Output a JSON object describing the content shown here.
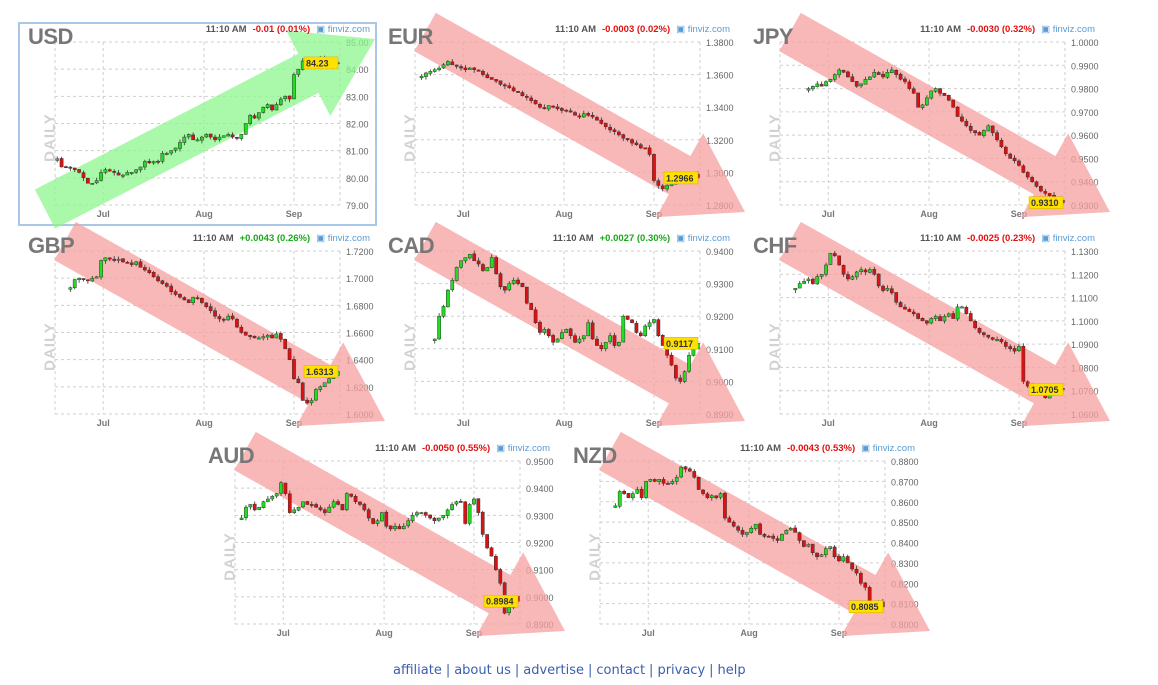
{
  "colors": {
    "up": "#22dd22",
    "down": "#dd1111",
    "up_arrow": "#8ef58e",
    "down_arrow": "#f7a0a0",
    "last_price_bg": "#ffe000",
    "link": "#3b5fb0",
    "brand": "#5a9ad6",
    "selected_border": "#a9c8e8"
  },
  "month_ticks": [
    {
      "label": "Jul",
      "slot": 11
    },
    {
      "label": "Aug",
      "slot": 34
    },
    {
      "label": "Sep",
      "slot": 54.5
    }
  ],
  "common": {
    "time": "11:10 AM",
    "brand": "finviz.com",
    "period": "DAILY",
    "brand_icon": "camera-icon"
  },
  "charts": [
    {
      "symbol": "USD",
      "change": "-0.01 (0.01%)",
      "direction": "down",
      "trend": "up",
      "selected": true,
      "last": "84.23",
      "y_ticks": [
        "85.00",
        "84.00",
        "83.00",
        "82.00",
        "81.00",
        "80.00",
        "79.00"
      ],
      "closes": [
        80.7,
        80.4,
        80.4,
        80.35,
        80.3,
        80.2,
        80.0,
        79.8,
        79.8,
        79.9,
        80.2,
        80.3,
        80.25,
        80.2,
        80.1,
        80.1,
        80.2,
        80.2,
        80.3,
        80.4,
        80.6,
        80.55,
        80.6,
        80.6,
        80.9,
        80.9,
        81.0,
        81.1,
        81.3,
        81.5,
        81.6,
        81.4,
        81.4,
        81.5,
        81.6,
        81.5,
        81.4,
        81.5,
        81.55,
        81.6,
        81.5,
        81.45,
        81.6,
        82.0,
        82.3,
        82.2,
        82.4,
        82.6,
        82.7,
        82.5,
        82.7,
        82.9,
        83.0,
        82.9,
        83.8,
        84.0,
        84.3,
        84.2,
        84.1,
        84.3,
        84.4,
        84.3,
        84.2,
        84.25,
        84.23
      ]
    },
    {
      "symbol": "EUR",
      "change": "-0.0003 (0.02%)",
      "direction": "down",
      "trend": "down",
      "last": "1.2966",
      "y_ticks": [
        "1.3800",
        "1.3600",
        "1.3400",
        "1.3200",
        "1.3000",
        "1.2800"
      ],
      "closes": [
        1.359,
        1.361,
        1.362,
        1.363,
        1.364,
        1.366,
        1.368,
        1.366,
        1.365,
        1.364,
        1.363,
        1.364,
        1.363,
        1.362,
        1.36,
        1.358,
        1.357,
        1.356,
        1.354,
        1.353,
        1.352,
        1.35,
        1.349,
        1.347,
        1.346,
        1.344,
        1.342,
        1.34,
        1.339,
        1.341,
        1.34,
        1.339,
        1.338,
        1.338,
        1.337,
        1.335,
        1.334,
        1.336,
        1.335,
        1.334,
        1.332,
        1.33,
        1.328,
        1.326,
        1.325,
        1.323,
        1.321,
        1.32,
        1.318,
        1.317,
        1.315,
        1.315,
        1.311,
        1.295,
        1.292,
        1.29,
        1.292,
        1.293,
        1.295,
        1.296,
        1.297,
        1.298,
        1.299,
        1.2966
      ]
    },
    {
      "symbol": "JPY",
      "change": "-0.0030 (0.32%)",
      "direction": "down",
      "trend": "down",
      "last": "0.9310",
      "y_ticks": [
        "1.0000",
        "0.9900",
        "0.9800",
        "0.9700",
        "0.9600",
        "0.9500",
        "0.9400",
        "0.9300"
      ],
      "closes": [
        0.98,
        0.981,
        0.982,
        0.981,
        0.983,
        0.984,
        0.986,
        0.988,
        0.987,
        0.985,
        0.983,
        0.981,
        0.982,
        0.984,
        0.985,
        0.987,
        0.986,
        0.985,
        0.987,
        0.988,
        0.986,
        0.984,
        0.983,
        0.98,
        0.978,
        0.972,
        0.973,
        0.976,
        0.979,
        0.98,
        0.978,
        0.977,
        0.975,
        0.972,
        0.968,
        0.966,
        0.964,
        0.962,
        0.961,
        0.96,
        0.962,
        0.964,
        0.961,
        0.958,
        0.955,
        0.952,
        0.95,
        0.949,
        0.947,
        0.944,
        0.942,
        0.94,
        0.938,
        0.936,
        0.935,
        0.934,
        0.933,
        0.932,
        0.931
      ]
    },
    {
      "symbol": "GBP",
      "change": "+0.0043 (0.26%)",
      "direction": "up",
      "trend": "down",
      "last": "1.6313",
      "y_ticks": [
        "1.7200",
        "1.7000",
        "1.6800",
        "1.6600",
        "1.6400",
        "1.6200",
        "1.6000"
      ],
      "closes": [
        1.693,
        1.699,
        1.7,
        1.699,
        1.698,
        1.7,
        1.701,
        1.713,
        1.715,
        1.714,
        1.713,
        1.714,
        1.712,
        1.711,
        1.71,
        1.712,
        1.708,
        1.706,
        1.704,
        1.701,
        1.698,
        1.696,
        1.694,
        1.69,
        1.688,
        1.686,
        1.684,
        1.682,
        1.686,
        1.685,
        1.682,
        1.679,
        1.676,
        1.672,
        1.67,
        1.669,
        1.672,
        1.67,
        1.664,
        1.66,
        1.658,
        1.657,
        1.656,
        1.656,
        1.657,
        1.658,
        1.656,
        1.659,
        1.655,
        1.648,
        1.64,
        1.626,
        1.623,
        1.61,
        1.608,
        1.61,
        1.618,
        1.62,
        1.623,
        1.626,
        1.628,
        1.6313
      ]
    },
    {
      "symbol": "CAD",
      "change": "+0.0027 (0.30%)",
      "direction": "up",
      "trend": "down",
      "last": "0.9117",
      "y_ticks": [
        "0.9400",
        "0.9300",
        "0.9200",
        "0.9100",
        "0.9000",
        "0.8900"
      ],
      "closes": [
        0.913,
        0.92,
        0.923,
        0.928,
        0.931,
        0.935,
        0.937,
        0.938,
        0.939,
        0.937,
        0.936,
        0.934,
        0.935,
        0.938,
        0.933,
        0.929,
        0.928,
        0.93,
        0.931,
        0.93,
        0.929,
        0.924,
        0.922,
        0.918,
        0.915,
        0.916,
        0.914,
        0.912,
        0.913,
        0.915,
        0.916,
        0.914,
        0.912,
        0.913,
        0.914,
        0.918,
        0.913,
        0.911,
        0.91,
        0.912,
        0.914,
        0.911,
        0.912,
        0.92,
        0.919,
        0.918,
        0.915,
        0.914,
        0.917,
        0.918,
        0.919,
        0.914,
        0.911,
        0.908,
        0.905,
        0.901,
        0.9,
        0.903,
        0.908,
        0.91,
        0.9117
      ]
    },
    {
      "symbol": "CHF",
      "change": "-0.0025 (0.23%)",
      "direction": "down",
      "trend": "down",
      "last": "1.0705",
      "y_ticks": [
        "1.1300",
        "1.1200",
        "1.1100",
        "1.1000",
        "1.0900",
        "1.0800",
        "1.0700",
        "1.0600"
      ],
      "closes": [
        1.114,
        1.116,
        1.117,
        1.118,
        1.116,
        1.119,
        1.12,
        1.124,
        1.129,
        1.128,
        1.124,
        1.12,
        1.118,
        1.119,
        1.121,
        1.122,
        1.121,
        1.122,
        1.12,
        1.115,
        1.113,
        1.114,
        1.112,
        1.108,
        1.106,
        1.105,
        1.104,
        1.103,
        1.101,
        1.1,
        1.099,
        1.101,
        1.102,
        1.1,
        1.102,
        1.103,
        1.101,
        1.106,
        1.106,
        1.103,
        1.1,
        1.097,
        1.095,
        1.094,
        1.093,
        1.092,
        1.092,
        1.091,
        1.089,
        1.088,
        1.087,
        1.089,
        1.074,
        1.072,
        1.071,
        1.07,
        1.068,
        1.067,
        1.069,
        1.07,
        1.071,
        1.0705
      ]
    },
    {
      "symbol": "AUD",
      "change": "-0.0050 (0.55%)",
      "direction": "down",
      "trend": "down",
      "last": "0.8984",
      "y_ticks": [
        "0.9500",
        "0.9400",
        "0.9300",
        "0.9200",
        "0.9100",
        "0.9000",
        "0.8900"
      ],
      "closes": [
        0.929,
        0.933,
        0.934,
        0.932,
        0.933,
        0.935,
        0.936,
        0.937,
        0.938,
        0.942,
        0.938,
        0.931,
        0.932,
        0.933,
        0.935,
        0.934,
        0.934,
        0.933,
        0.932,
        0.931,
        0.933,
        0.935,
        0.934,
        0.932,
        0.938,
        0.937,
        0.935,
        0.934,
        0.932,
        0.929,
        0.927,
        0.928,
        0.931,
        0.926,
        0.925,
        0.926,
        0.925,
        0.926,
        0.928,
        0.93,
        0.931,
        0.931,
        0.93,
        0.929,
        0.928,
        0.929,
        0.93,
        0.932,
        0.934,
        0.935,
        0.935,
        0.927,
        0.934,
        0.936,
        0.931,
        0.923,
        0.918,
        0.915,
        0.91,
        0.905,
        0.894,
        0.896,
        0.9,
        0.8984
      ]
    },
    {
      "symbol": "NZD",
      "change": "-0.0043 (0.53%)",
      "direction": "down",
      "trend": "down",
      "last": "0.8085",
      "y_ticks": [
        "0.8800",
        "0.8700",
        "0.8600",
        "0.8500",
        "0.8400",
        "0.8300",
        "0.8200",
        "0.8100",
        "0.8000"
      ],
      "closes": [
        0.858,
        0.865,
        0.864,
        0.862,
        0.864,
        0.866,
        0.862,
        0.87,
        0.871,
        0.87,
        0.871,
        0.869,
        0.869,
        0.87,
        0.872,
        0.877,
        0.876,
        0.875,
        0.872,
        0.866,
        0.864,
        0.862,
        0.863,
        0.862,
        0.864,
        0.852,
        0.85,
        0.848,
        0.846,
        0.844,
        0.845,
        0.847,
        0.849,
        0.844,
        0.843,
        0.843,
        0.842,
        0.841,
        0.844,
        0.846,
        0.847,
        0.845,
        0.841,
        0.838,
        0.839,
        0.835,
        0.833,
        0.834,
        0.837,
        0.838,
        0.833,
        0.831,
        0.833,
        0.83,
        0.827,
        0.825,
        0.82,
        0.818,
        0.808,
        0.81,
        0.811,
        0.8085
      ]
    }
  ],
  "footer": {
    "links": [
      "affiliate",
      "about us",
      "advertise",
      "contact",
      "privacy",
      "help"
    ]
  }
}
